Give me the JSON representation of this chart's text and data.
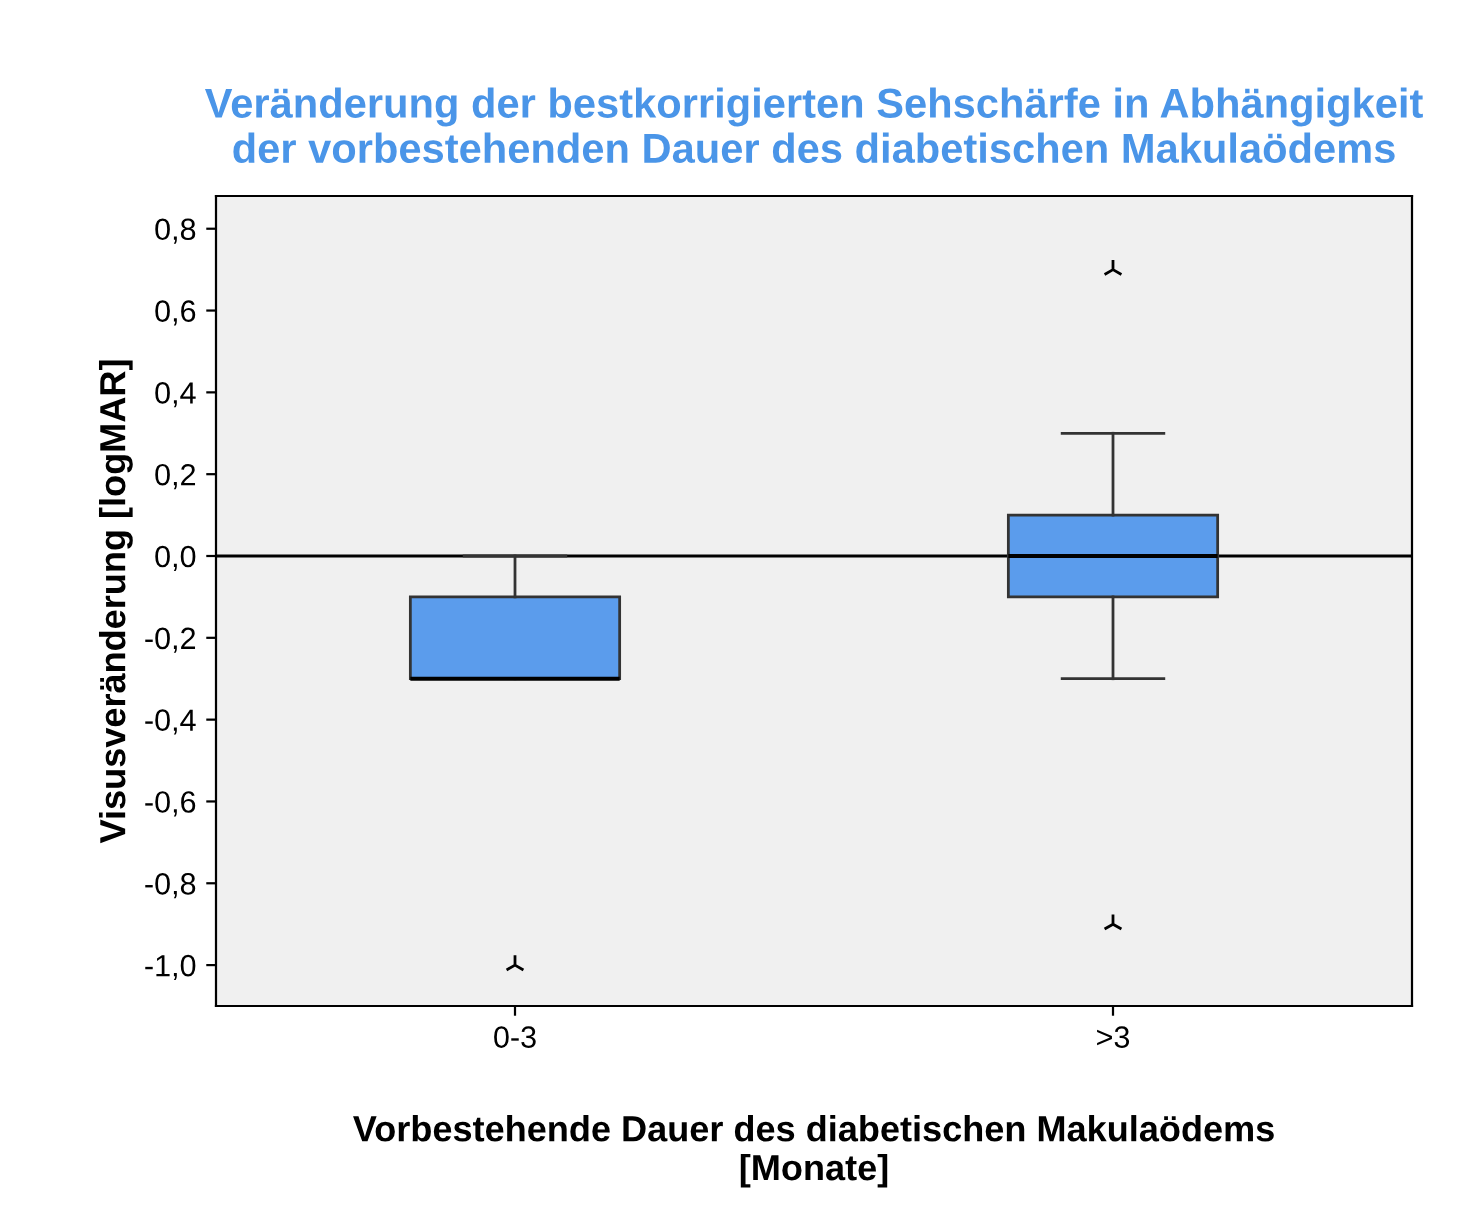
{
  "chart_data": {
    "type": "box",
    "title": "Veränderung der bestkorrigierten Sehschärfe in Abhängigkeit\nder vorbestehenden Dauer des diabetischen Makulaödems",
    "xlabel": "Vorbestehende Dauer des diabetischen Makulaödems\n[Monate]",
    "ylabel": "Visusveränderung [logMAR]",
    "categories": [
      "0-3",
      ">3"
    ],
    "color": "#5b9cec",
    "boxes": [
      {
        "low": -0.3,
        "q1": -0.3,
        "median": -0.3,
        "q3": -0.1,
        "high": 0.0,
        "outliers": [
          -1.0
        ]
      },
      {
        "low": -0.3,
        "q1": -0.1,
        "median": 0.0,
        "q3": 0.1,
        "high": 0.3,
        "outliers": [
          0.7,
          -0.9
        ]
      }
    ],
    "ylim": [
      -1.1,
      0.88
    ],
    "yticks": [
      {
        "value": -1.0,
        "label": "-1,0"
      },
      {
        "value": -0.8,
        "label": "-0,8"
      },
      {
        "value": -0.6,
        "label": "-0,6"
      },
      {
        "value": -0.4,
        "label": "-0,4"
      },
      {
        "value": -0.2,
        "label": "-0,2"
      },
      {
        "value": 0.0,
        "label": "0,0"
      },
      {
        "value": 0.2,
        "label": "0,2"
      },
      {
        "value": 0.4,
        "label": "0,4"
      },
      {
        "value": 0.6,
        "label": "0,6"
      },
      {
        "value": 0.8,
        "label": "0,8"
      }
    ],
    "ref_lines": [
      {
        "axis": "y",
        "value": 0.0,
        "color": "#000000"
      }
    ],
    "grid": false,
    "marker": "star"
  }
}
